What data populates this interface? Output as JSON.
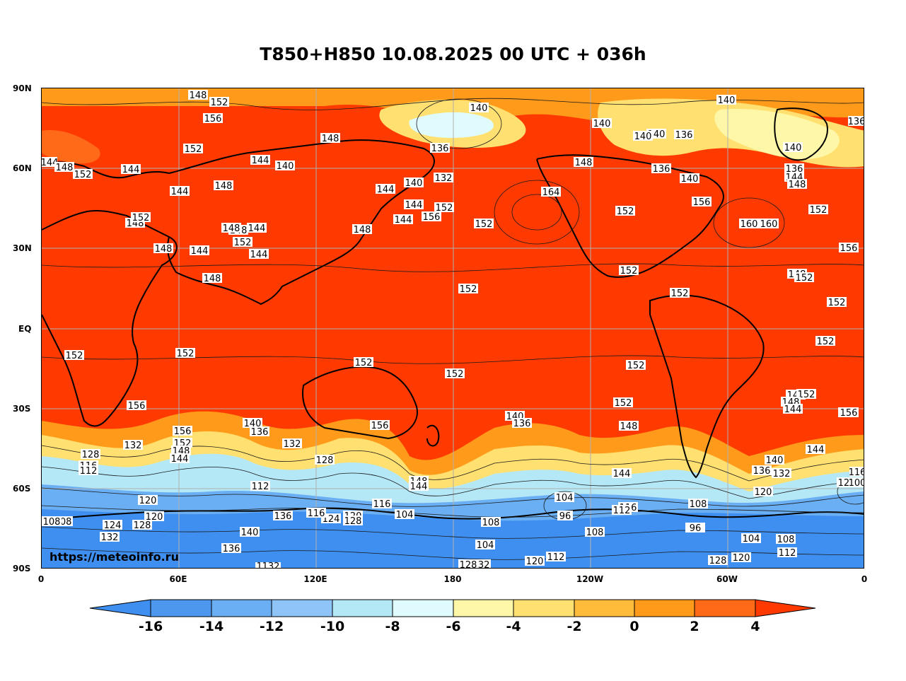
{
  "title": "T850+H850 10.08.2025 00 UTC + 036h",
  "watermark": "https://meteoinfo.ru",
  "lat_labels": [
    "90N",
    "60N",
    "30N",
    "EQ",
    "30S",
    "60S",
    "90S"
  ],
  "lon_labels": [
    "0",
    "60E",
    "120E",
    "180",
    "120W",
    "60W",
    "0"
  ],
  "colorbar": {
    "labels": [
      "-16",
      "-14",
      "-12",
      "-10",
      "-8",
      "-6",
      "-4",
      "-2",
      "0",
      "2",
      "4"
    ],
    "colors": [
      "#3f8ff0",
      "#4d97ee",
      "#6aaef3",
      "#8ec4f7",
      "#b5e8f7",
      "#e0fbfd",
      "#fff7a8",
      "#ffe070",
      "#ffbb3a",
      "#ff9a1a",
      "#ff6a18",
      "#ff3a00"
    ]
  },
  "contour_labels": [
    "148",
    "152",
    "156",
    "148",
    "152",
    "144",
    "148",
    "152",
    "144",
    "144",
    "144",
    "140",
    "148",
    "148",
    "148",
    "152",
    "144",
    "148",
    "144",
    "152",
    "148",
    "144",
    "148",
    "144",
    "148",
    "136",
    "140",
    "140",
    "132",
    "144",
    "152",
    "156",
    "152",
    "136",
    "140",
    "148",
    "148",
    "164",
    "160",
    "152",
    "152",
    "152",
    "152",
    "152",
    "160",
    "152",
    "156",
    "152",
    "152",
    "152",
    "152",
    "152",
    "152",
    "152",
    "156",
    "152",
    "148",
    "152",
    "152",
    "156",
    "156",
    "152",
    "148",
    "144",
    "140",
    "136",
    "132",
    "128",
    "116",
    "112",
    "132",
    "140",
    "136",
    "132",
    "128",
    "120",
    "112",
    "108",
    "120",
    "128",
    "124",
    "132",
    "140",
    "136",
    "132",
    "124",
    "116",
    "120",
    "128",
    "116",
    "104",
    "108",
    "104",
    "112",
    "120",
    "132",
    "128",
    "140",
    "136",
    "148",
    "144",
    "104",
    "96",
    "108",
    "116",
    "112",
    "144",
    "148",
    "152",
    "136",
    "132",
    "120",
    "108",
    "96",
    "104",
    "112",
    "120",
    "128",
    "140",
    "144",
    "156",
    "152",
    "148",
    "144",
    "108",
    "120",
    "116",
    "100",
    "140",
    "136",
    "140",
    "136",
    "144",
    "148",
    "140",
    "136",
    "156",
    "140",
    "144",
    "140",
    "108"
  ]
}
